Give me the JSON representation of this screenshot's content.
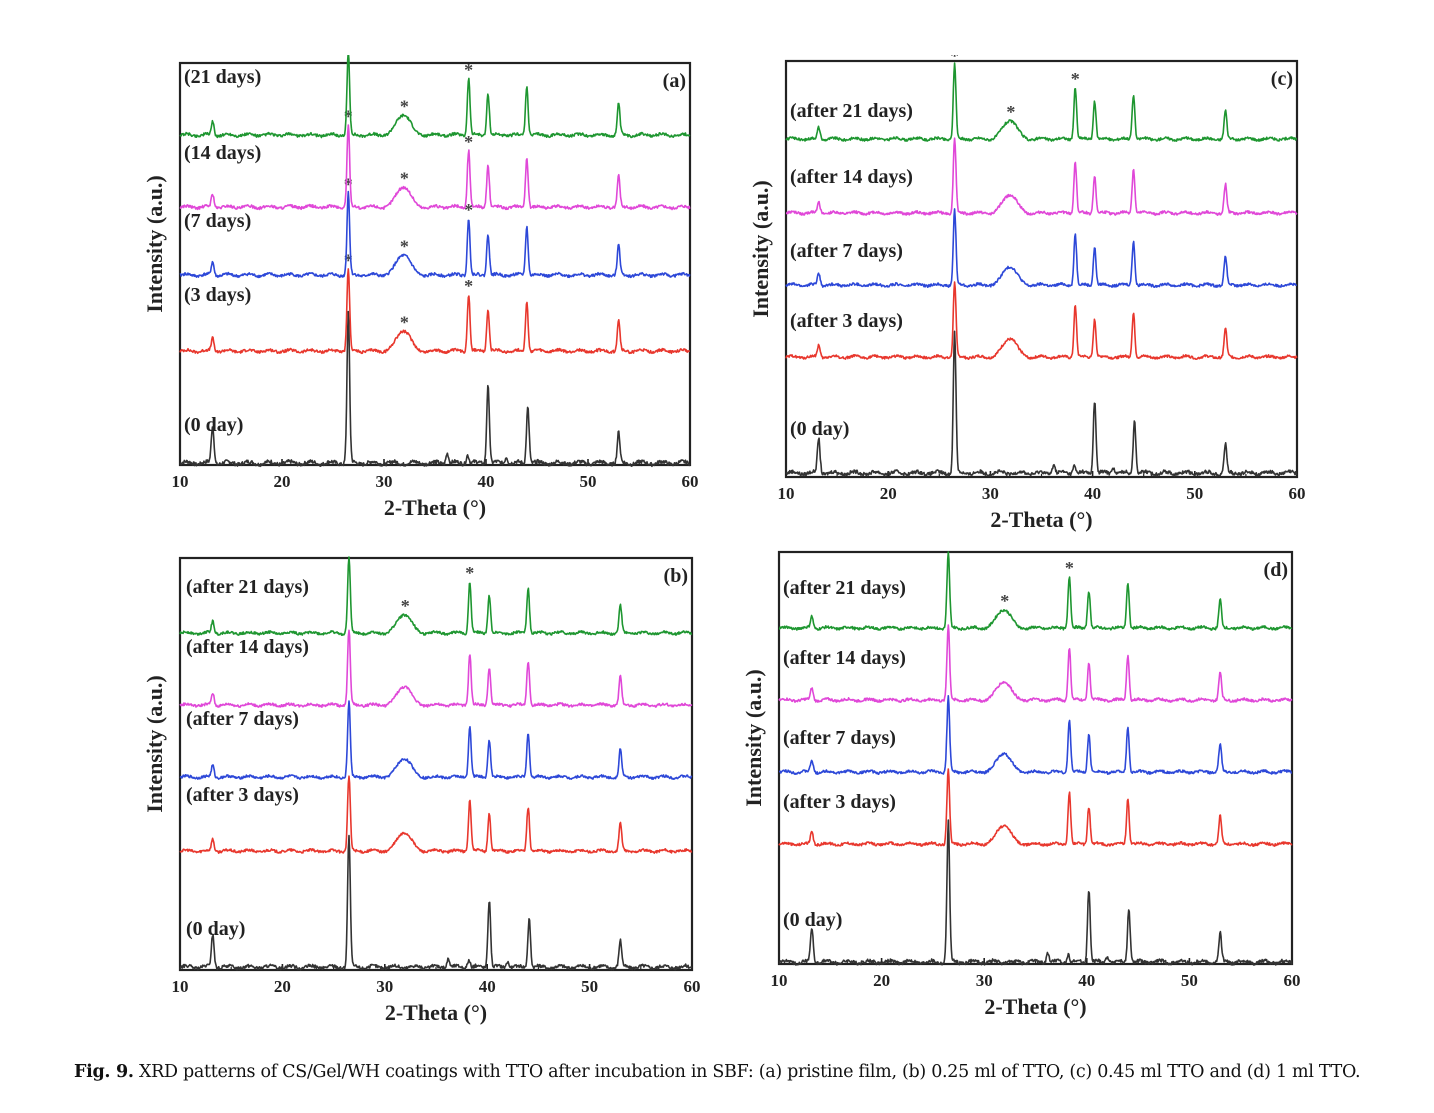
{
  "caption": {
    "label": "Fig. 9.",
    "text": "XRD patterns of CS/Gel/WH coatings with TTO after incubation in SBF: (a) pristine film, (b) 0.25 ml of TTO, (c) 0.45 ml TTO and (d) 1 ml TTO."
  },
  "chart_data": [
    {
      "type": "line",
      "panel_label": "(a)",
      "xlabel": "2-Theta (°)",
      "ylabel": "Intensity (a.u.)",
      "xlim": [
        10,
        60
      ],
      "xticks": [
        10,
        20,
        30,
        40,
        50,
        60
      ],
      "grid": false,
      "stacked_offset": true,
      "series": [
        {
          "name": "(0 day)",
          "color": "#333333",
          "peaks": [
            [
              13.2,
              0.25
            ],
            [
              26.5,
              1.0
            ],
            [
              36.2,
              0.07
            ],
            [
              38.2,
              0.06
            ],
            [
              40.2,
              0.52
            ],
            [
              42.0,
              0.05
            ],
            [
              44.1,
              0.38
            ],
            [
              53.0,
              0.2
            ]
          ]
        },
        {
          "name": "(3 days)",
          "color": "#e8372d",
          "peaks": [
            [
              13.2,
              0.12
            ],
            [
              26.5,
              0.75
            ],
            [
              31.5,
              0.1
            ],
            [
              32.2,
              0.13
            ],
            [
              38.3,
              0.52
            ],
            [
              40.2,
              0.38
            ],
            [
              44.0,
              0.45
            ],
            [
              53.0,
              0.28
            ]
          ],
          "starred": [
            26.5,
            32.0,
            38.3
          ]
        },
        {
          "name": "(7 days)",
          "color": "#2d48d8",
          "peaks": [
            [
              13.2,
              0.12
            ],
            [
              26.5,
              0.75
            ],
            [
              31.5,
              0.1
            ],
            [
              32.2,
              0.13
            ],
            [
              38.3,
              0.52
            ],
            [
              40.2,
              0.38
            ],
            [
              44.0,
              0.45
            ],
            [
              53.0,
              0.28
            ]
          ],
          "starred": [
            26.5,
            32.0,
            38.3
          ]
        },
        {
          "name": "(14 days)",
          "color": "#e048d8",
          "peaks": [
            [
              13.2,
              0.12
            ],
            [
              26.5,
              0.75
            ],
            [
              31.5,
              0.1
            ],
            [
              32.2,
              0.13
            ],
            [
              38.3,
              0.52
            ],
            [
              40.2,
              0.38
            ],
            [
              44.0,
              0.45
            ],
            [
              53.0,
              0.28
            ]
          ],
          "starred": [
            26.5,
            32.0,
            38.3
          ]
        },
        {
          "name": "(21 days)",
          "color": "#1e9630",
          "peaks": [
            [
              13.2,
              0.12
            ],
            [
              26.5,
              0.75
            ],
            [
              31.5,
              0.1
            ],
            [
              32.2,
              0.13
            ],
            [
              38.3,
              0.52
            ],
            [
              40.2,
              0.38
            ],
            [
              44.0,
              0.45
            ],
            [
              53.0,
              0.28
            ]
          ],
          "starred": [
            26.5,
            32.0,
            38.3
          ]
        }
      ]
    },
    {
      "type": "line",
      "panel_label": "(b)",
      "xlabel": "2-Theta (°)",
      "ylabel": "Intensity (a.u.)",
      "xlim": [
        10,
        60
      ],
      "xticks": [
        10,
        20,
        30,
        40,
        50,
        60
      ],
      "grid": false,
      "stacked_offset": true,
      "series": [
        {
          "name": "(0 day)",
          "color": "#333333",
          "peaks": [
            [
              13.2,
              0.25
            ],
            [
              26.5,
              1.0
            ],
            [
              36.2,
              0.07
            ],
            [
              38.2,
              0.06
            ],
            [
              40.2,
              0.52
            ],
            [
              42.0,
              0.05
            ],
            [
              44.1,
              0.38
            ],
            [
              53.0,
              0.2
            ]
          ]
        },
        {
          "name": "(after 3 days)",
          "color": "#e8372d",
          "peaks": [
            [
              13.2,
              0.12
            ],
            [
              26.5,
              0.75
            ],
            [
              31.5,
              0.1
            ],
            [
              32.2,
              0.13
            ],
            [
              38.3,
              0.52
            ],
            [
              40.2,
              0.38
            ],
            [
              44.0,
              0.45
            ],
            [
              53.0,
              0.28
            ]
          ]
        },
        {
          "name": "(after 7 days)",
          "color": "#2d48d8",
          "peaks": [
            [
              13.2,
              0.12
            ],
            [
              26.5,
              0.75
            ],
            [
              31.5,
              0.1
            ],
            [
              32.2,
              0.13
            ],
            [
              38.3,
              0.52
            ],
            [
              40.2,
              0.38
            ],
            [
              44.0,
              0.45
            ],
            [
              53.0,
              0.28
            ]
          ]
        },
        {
          "name": "(after 14 days)",
          "color": "#e048d8",
          "peaks": [
            [
              13.2,
              0.12
            ],
            [
              26.5,
              0.75
            ],
            [
              31.5,
              0.1
            ],
            [
              32.2,
              0.13
            ],
            [
              38.3,
              0.52
            ],
            [
              40.2,
              0.38
            ],
            [
              44.0,
              0.45
            ],
            [
              53.0,
              0.28
            ]
          ]
        },
        {
          "name": "(after 21 days)",
          "color": "#1e9630",
          "peaks": [
            [
              13.2,
              0.12
            ],
            [
              26.5,
              0.75
            ],
            [
              31.5,
              0.1
            ],
            [
              32.2,
              0.13
            ],
            [
              38.3,
              0.52
            ],
            [
              40.2,
              0.38
            ],
            [
              44.0,
              0.45
            ],
            [
              53.0,
              0.28
            ]
          ],
          "starred": [
            26.5,
            32.0,
            38.3
          ]
        }
      ]
    },
    {
      "type": "line",
      "panel_label": "(c)",
      "xlabel": "2-Theta (°)",
      "ylabel": "Intensity (a.u.)",
      "xlim": [
        10,
        60
      ],
      "xticks": [
        10,
        20,
        30,
        40,
        50,
        60
      ],
      "grid": false,
      "stacked_offset": true,
      "series": [
        {
          "name": "(0 day)",
          "color": "#333333",
          "peaks": [
            [
              13.2,
              0.25
            ],
            [
              26.5,
              1.0
            ],
            [
              36.2,
              0.07
            ],
            [
              38.2,
              0.06
            ],
            [
              40.2,
              0.52
            ],
            [
              42.0,
              0.05
            ],
            [
              44.1,
              0.38
            ],
            [
              53.0,
              0.2
            ]
          ]
        },
        {
          "name": "(after 3 days)",
          "color": "#e8372d",
          "peaks": [
            [
              13.2,
              0.12
            ],
            [
              26.5,
              0.75
            ],
            [
              31.5,
              0.1
            ],
            [
              32.2,
              0.13
            ],
            [
              38.3,
              0.52
            ],
            [
              40.2,
              0.38
            ],
            [
              44.0,
              0.45
            ],
            [
              53.0,
              0.28
            ]
          ]
        },
        {
          "name": "(after 7 days)",
          "color": "#2d48d8",
          "peaks": [
            [
              13.2,
              0.12
            ],
            [
              26.5,
              0.75
            ],
            [
              31.5,
              0.1
            ],
            [
              32.2,
              0.13
            ],
            [
              38.3,
              0.52
            ],
            [
              40.2,
              0.38
            ],
            [
              44.0,
              0.45
            ],
            [
              53.0,
              0.28
            ]
          ]
        },
        {
          "name": "(after 14 days)",
          "color": "#e048d8",
          "peaks": [
            [
              13.2,
              0.12
            ],
            [
              26.5,
              0.75
            ],
            [
              31.5,
              0.1
            ],
            [
              32.2,
              0.13
            ],
            [
              38.3,
              0.52
            ],
            [
              40.2,
              0.38
            ],
            [
              44.0,
              0.45
            ],
            [
              53.0,
              0.28
            ]
          ]
        },
        {
          "name": "(after 21 days)",
          "color": "#1e9630",
          "peaks": [
            [
              13.2,
              0.12
            ],
            [
              26.5,
              0.75
            ],
            [
              31.5,
              0.1
            ],
            [
              32.2,
              0.13
            ],
            [
              38.3,
              0.52
            ],
            [
              40.2,
              0.38
            ],
            [
              44.0,
              0.45
            ],
            [
              53.0,
              0.28
            ]
          ],
          "starred": [
            26.5,
            32.0,
            38.3
          ]
        }
      ]
    },
    {
      "type": "line",
      "panel_label": "(d)",
      "xlabel": "2-Theta (°)",
      "ylabel": "Intensity (a.u.)",
      "xlim": [
        10,
        60
      ],
      "xticks": [
        10,
        20,
        30,
        40,
        50,
        60
      ],
      "grid": false,
      "stacked_offset": true,
      "series": [
        {
          "name": "(0 day)",
          "color": "#333333",
          "peaks": [
            [
              13.2,
              0.25
            ],
            [
              26.5,
              1.0
            ],
            [
              36.2,
              0.07
            ],
            [
              38.2,
              0.06
            ],
            [
              40.2,
              0.52
            ],
            [
              42.0,
              0.05
            ],
            [
              44.1,
              0.38
            ],
            [
              53.0,
              0.2
            ]
          ]
        },
        {
          "name": "(after 3 days)",
          "color": "#e8372d",
          "peaks": [
            [
              13.2,
              0.12
            ],
            [
              26.5,
              0.75
            ],
            [
              31.5,
              0.1
            ],
            [
              32.2,
              0.13
            ],
            [
              38.3,
              0.52
            ],
            [
              40.2,
              0.38
            ],
            [
              44.0,
              0.45
            ],
            [
              53.0,
              0.28
            ]
          ]
        },
        {
          "name": "(after 7 days)",
          "color": "#2d48d8",
          "peaks": [
            [
              13.2,
              0.12
            ],
            [
              26.5,
              0.75
            ],
            [
              31.5,
              0.1
            ],
            [
              32.2,
              0.13
            ],
            [
              38.3,
              0.52
            ],
            [
              40.2,
              0.38
            ],
            [
              44.0,
              0.45
            ],
            [
              53.0,
              0.28
            ]
          ]
        },
        {
          "name": "(after 14 days)",
          "color": "#e048d8",
          "peaks": [
            [
              13.2,
              0.12
            ],
            [
              26.5,
              0.75
            ],
            [
              31.5,
              0.1
            ],
            [
              32.2,
              0.13
            ],
            [
              38.3,
              0.52
            ],
            [
              40.2,
              0.38
            ],
            [
              44.0,
              0.45
            ],
            [
              53.0,
              0.28
            ]
          ]
        },
        {
          "name": "(after 21 days)",
          "color": "#1e9630",
          "peaks": [
            [
              13.2,
              0.12
            ],
            [
              26.5,
              0.75
            ],
            [
              31.5,
              0.1
            ],
            [
              32.2,
              0.13
            ],
            [
              38.3,
              0.52
            ],
            [
              40.2,
              0.38
            ],
            [
              44.0,
              0.45
            ],
            [
              53.0,
              0.28
            ]
          ],
          "starred": [
            26.5,
            32.0,
            38.3
          ]
        }
      ]
    }
  ]
}
